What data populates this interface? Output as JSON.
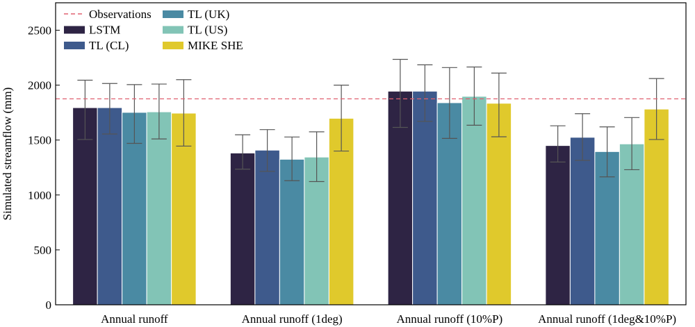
{
  "chart_data": {
    "type": "bar",
    "title": "",
    "xlabel": "",
    "ylabel": "Simulated streamflow (mm)",
    "ylim": [
      0,
      2750
    ],
    "yticks": [
      0,
      500,
      1000,
      1500,
      2000,
      2500
    ],
    "grid": false,
    "legend_position": "top-left",
    "categories": [
      "Annual runoff",
      "Annual runoff (1deg)",
      "Annual runoff (10%P)",
      "Annual runoff (1deg&10%P)"
    ],
    "series": [
      {
        "name": "LSTM",
        "color": "#2e2444",
        "values": [
          1795,
          1382,
          1945,
          1450
        ],
        "err_low": [
          1505,
          1235,
          1615,
          1300
        ],
        "err_high": [
          2045,
          1548,
          2235,
          1630
        ]
      },
      {
        "name": "TL (CL)",
        "color": "#3e5a8c",
        "values": [
          1795,
          1408,
          1945,
          1525
        ],
        "err_low": [
          1555,
          1215,
          1670,
          1315
        ],
        "err_high": [
          2015,
          1595,
          2185,
          1740
        ]
      },
      {
        "name": "TL (UK)",
        "color": "#4a8aa3",
        "values": [
          1752,
          1325,
          1840,
          1395
        ],
        "err_low": [
          1470,
          1130,
          1515,
          1165
        ],
        "err_high": [
          2005,
          1528,
          2160,
          1620
        ]
      },
      {
        "name": "TL (US)",
        "color": "#82c4b6",
        "values": [
          1757,
          1345,
          1898,
          1465
        ],
        "err_low": [
          1510,
          1122,
          1635,
          1230
        ],
        "err_high": [
          2010,
          1575,
          2165,
          1705
        ]
      },
      {
        "name": "MIKE SHE",
        "color": "#e0c92c",
        "values": [
          1745,
          1698,
          1835,
          1782
        ],
        "err_low": [
          1445,
          1400,
          1530,
          1505
        ],
        "err_high": [
          2050,
          2000,
          2110,
          2060
        ]
      }
    ],
    "reference_line": {
      "name": "Observations",
      "value": 1875,
      "color": "#e06070",
      "style": "dashed"
    },
    "errorbar_color": "#555555"
  }
}
